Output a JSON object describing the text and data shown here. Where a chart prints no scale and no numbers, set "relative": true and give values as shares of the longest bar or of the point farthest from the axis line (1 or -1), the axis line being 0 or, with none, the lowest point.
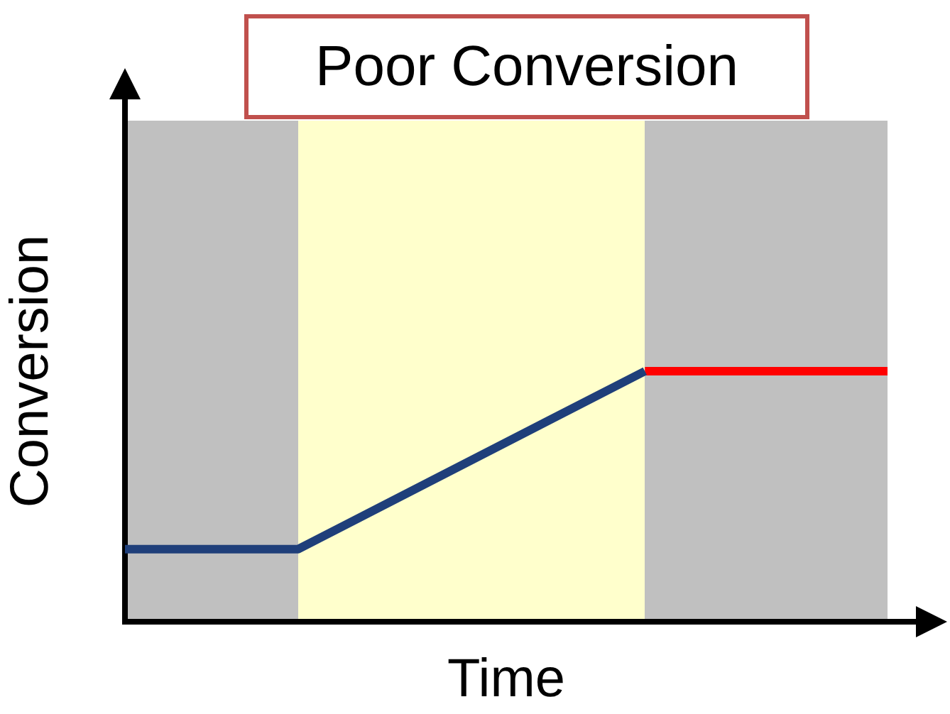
{
  "chart_data": {
    "type": "line",
    "title": "Poor Conversion",
    "xlabel": "Time",
    "ylabel": "Conversion",
    "relative": true,
    "categories": [
      null,
      null,
      null,
      null,
      null,
      null,
      null,
      null,
      null,
      null,
      null,
      null,
      null,
      null,
      null,
      null,
      null,
      null,
      null,
      null,
      null,
      null,
      null
    ],
    "series": [
      {
        "color": "#1f3f7a",
        "values": [
          0.29,
          null,
          null,
          null,
          null,
          0.29,
          null,
          null,
          null,
          null,
          null,
          null,
          null,
          null,
          null,
          1,
          null,
          null,
          null,
          null,
          null,
          null,
          null
        ]
      },
      {
        "color": "#ff0000",
        "values": [
          null,
          null,
          null,
          null,
          null,
          null,
          null,
          null,
          null,
          null,
          null,
          null,
          null,
          null,
          null,
          1,
          null,
          null,
          null,
          null,
          null,
          null,
          1
        ]
      }
    ],
    "grid": false,
    "legend": false,
    "marker": "none",
    "line_style": "solid"
  }
}
